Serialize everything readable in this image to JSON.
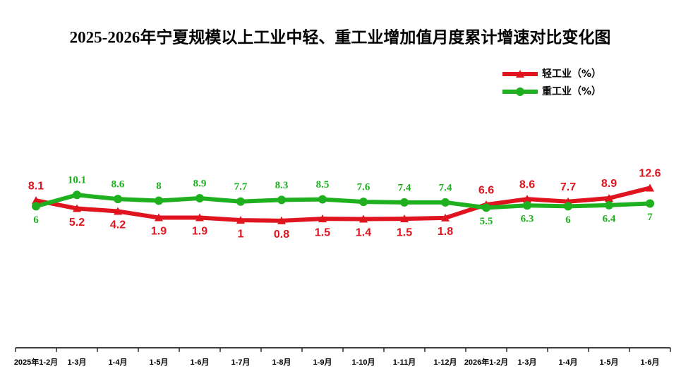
{
  "chart_data": {
    "type": "line",
    "title": "2025-2026年宁夏规模以上工业中轻、重工业增加值月度累计增速对比变化图",
    "categories": [
      "2025年1-2月",
      "1-3月",
      "1-4月",
      "1-5月",
      "1-6月",
      "1-7月",
      "1-8月",
      "1-9月",
      "1-10月",
      "1-11月",
      "1-12月",
      "2026年1-2月",
      "1-3月",
      "1-4月",
      "1-5月",
      "1-6月"
    ],
    "series": [
      {
        "name": "轻工业（%）",
        "color": "#e0141e",
        "marker": "triangle",
        "values": [
          8.1,
          5.2,
          4.2,
          1.9,
          1.9,
          1.0,
          0.8,
          1.5,
          1.4,
          1.5,
          1.8,
          6.6,
          8.6,
          7.7,
          8.9,
          12.6
        ]
      },
      {
        "name": "重工业（%）",
        "color": "#1fb01f",
        "marker": "circle",
        "values": [
          6.0,
          10.1,
          8.6,
          8.0,
          8.9,
          7.7,
          8.3,
          8.5,
          7.6,
          7.4,
          7.4,
          5.5,
          6.3,
          6.0,
          6.4,
          7.0
        ]
      }
    ],
    "ylim": [
      -45,
      60
    ],
    "legend": "top-right"
  }
}
